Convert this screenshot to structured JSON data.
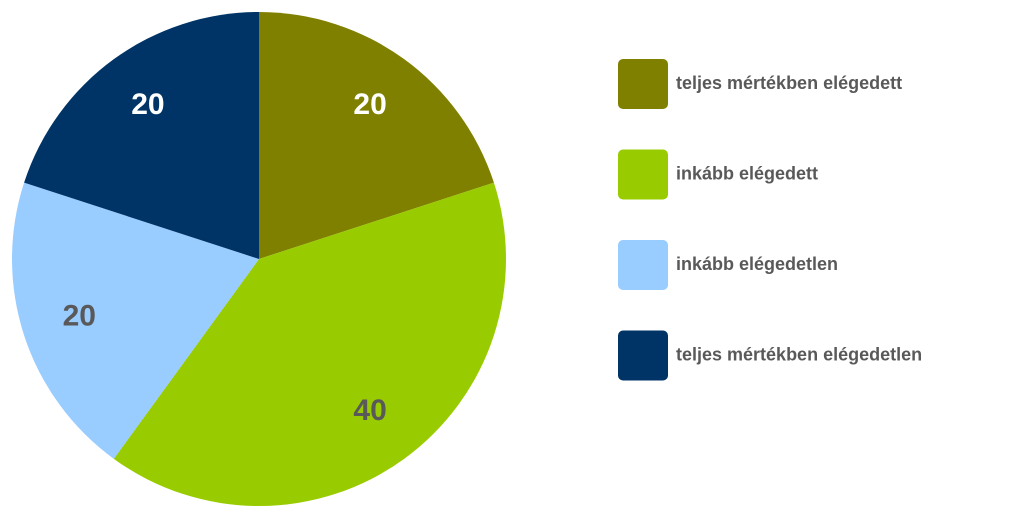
{
  "chart_data": {
    "type": "pie",
    "categories": [
      "teljes mértékben elégedett",
      "inkább elégedett",
      "inkább elégedetlen",
      "teljes mértékben elégedetlen"
    ],
    "values": [
      20,
      40,
      20,
      20
    ],
    "colors": [
      "#808000",
      "#99cc00",
      "#99ccff",
      "#003366"
    ],
    "label_colors": [
      "#ffffff",
      "#595959",
      "#595959",
      "#ffffff"
    ],
    "legend": "right"
  }
}
